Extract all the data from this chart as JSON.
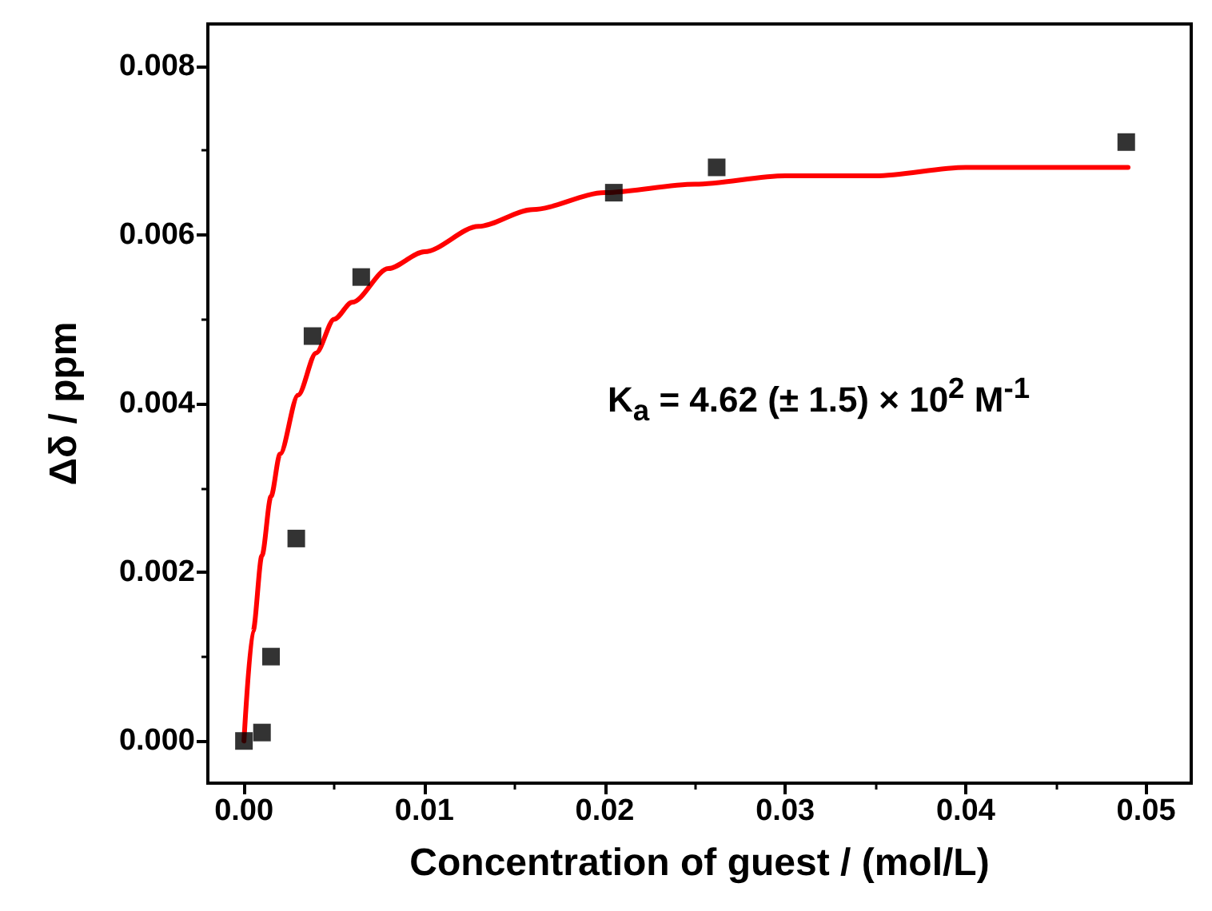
{
  "chart_data": {
    "type": "scatter",
    "xlabel": "Concentration of guest / (mol/L)",
    "ylabel": "Δδ / ppm",
    "xlim": [
      -0.002,
      0.0525
    ],
    "xticks": [
      {
        "value": 0,
        "label": "0.00"
      },
      {
        "value": 0.01,
        "label": "0.01"
      },
      {
        "value": 0.02,
        "label": "0.02"
      },
      {
        "value": 0.03,
        "label": "0.03"
      },
      {
        "value": 0.04,
        "label": "0.04"
      },
      {
        "value": 0.05,
        "label": "0.05"
      }
    ],
    "ylim": [
      -0.0005,
      0.0085
    ],
    "yticks": [
      {
        "value": 0,
        "label": "0.000"
      },
      {
        "value": 0.002,
        "label": "0.002"
      },
      {
        "value": 0.004,
        "label": "0.004"
      },
      {
        "value": 0.006,
        "label": "0.006"
      },
      {
        "value": 0.008,
        "label": "0.008"
      }
    ],
    "grid": false,
    "marker": "square",
    "annotations": [
      "K$_{a}$ = 4.62 (± 1.5) × 10$^{2}$ M$^{-1}$"
    ],
    "series": [
      {
        "color": "#000000",
        "x": [
          0,
          0.001,
          0.0015,
          0.0029,
          0.0038,
          0.0065,
          0.0205,
          0.0262,
          0.0489
        ],
        "values": [
          0,
          0.0001,
          0.001,
          0.0024,
          0.0048,
          0.0055,
          0.0065,
          0.0068,
          0.0071
        ]
      },
      {
        "type": "line",
        "color": "#ff0000",
        "marker": "none",
        "line_style": "solid",
        "x": [
          0,
          0.0005,
          0.001,
          0.0015,
          0.002,
          0.003,
          0.004,
          0.005,
          0.006,
          0.008,
          0.01,
          0.013,
          0.016,
          0.02,
          0.025,
          0.03,
          0.035,
          0.04,
          0.045,
          0.049
        ],
        "values": [
          0,
          0.0013,
          0.0022,
          0.0029,
          0.0034,
          0.0041,
          0.0046,
          0.005,
          0.0052,
          0.0056,
          0.0058,
          0.0061,
          0.0063,
          0.0065,
          0.0066,
          0.0067,
          0.0067,
          0.0068,
          0.0068,
          0.0068
        ]
      }
    ]
  }
}
